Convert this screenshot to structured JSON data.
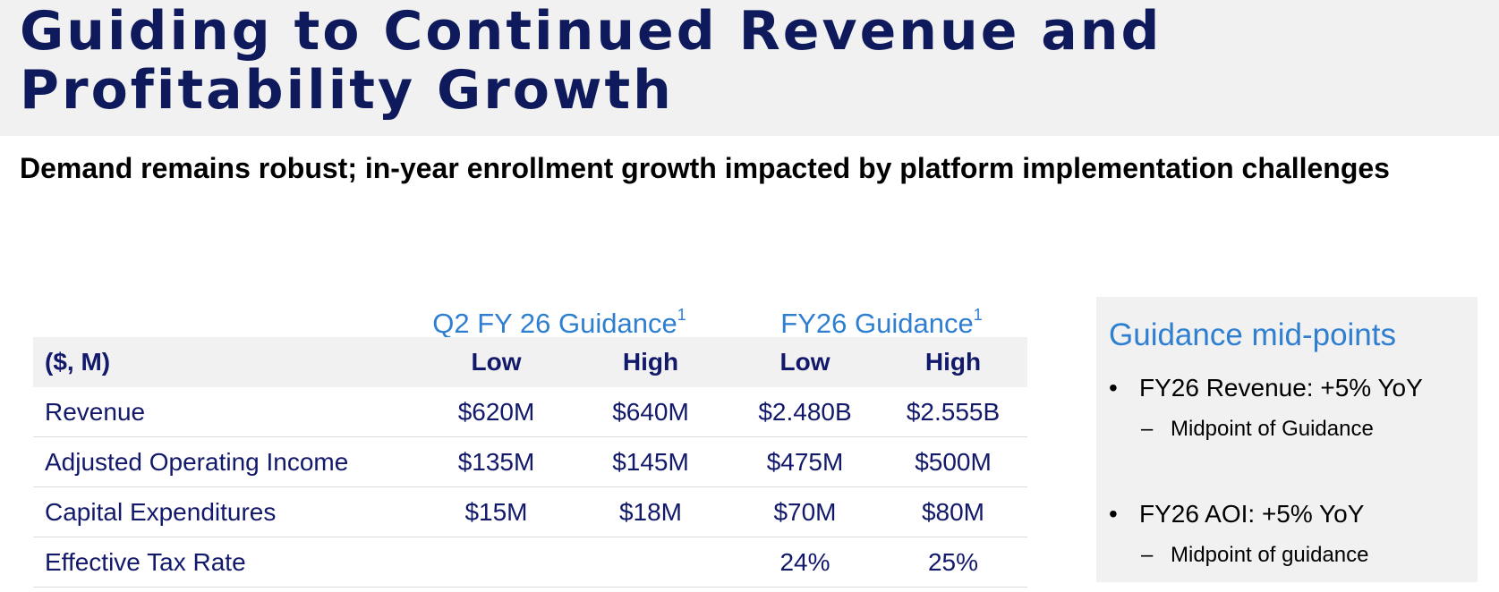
{
  "title": "Guiding to Continued Revenue and Profitability Growth",
  "subtitle": "Demand remains robust; in-year enrollment growth impacted by platform implementation challenges",
  "table": {
    "group_headers": [
      {
        "label": "Q2 FY 26 Guidance",
        "footnote": "1"
      },
      {
        "label": "FY26 Guidance",
        "footnote": "1"
      }
    ],
    "columns": [
      "($, M)",
      "Low",
      "High",
      "Low",
      "High"
    ],
    "rows": [
      {
        "label": "Revenue",
        "values": [
          "$620M",
          "$640M",
          "$2.480B",
          "$2.555B"
        ]
      },
      {
        "label": "Adjusted Operating Income",
        "values": [
          "$135M",
          "$145M",
          "$475M",
          "$500M"
        ]
      },
      {
        "label": "Capital Expenditures",
        "values": [
          "$15M",
          "$18M",
          "$70M",
          "$80M"
        ]
      },
      {
        "label": "Effective Tax Rate",
        "values": [
          "",
          "",
          "24%",
          "25%"
        ]
      }
    ]
  },
  "sidebar": {
    "title": "Guidance mid-points",
    "bullets": [
      {
        "bullet_char": "•",
        "text": "FY26 Revenue: +5% YoY",
        "sub_char": "–",
        "sub": "Midpoint of Guidance"
      },
      {
        "bullet_char": "•",
        "text": "FY26 AOI: +5% YoY",
        "sub_char": "–",
        "sub": "Midpoint of guidance"
      }
    ]
  },
  "colors": {
    "title": "#0f1a5c",
    "accent_blue": "#2f7fd1",
    "table_text": "#12196b",
    "band_gray": "#f1f1f1"
  }
}
